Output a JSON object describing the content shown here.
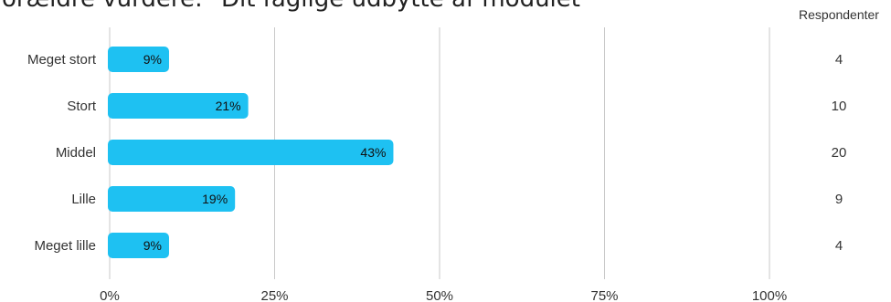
{
  "chart_data": {
    "type": "bar",
    "orientation": "horizontal",
    "title": "Forældre vurdere: \"Dit faglige udbytte af modulet\"",
    "categories": [
      "Meget stort",
      "Stort",
      "Middel",
      "Lille",
      "Meget lille"
    ],
    "values": [
      9,
      21,
      43,
      19,
      9
    ],
    "value_labels": [
      "9%",
      "21%",
      "43%",
      "19%",
      "9%"
    ],
    "respondents_header": "Respondenter",
    "respondents": [
      "4",
      "10",
      "20",
      "9",
      "4"
    ],
    "x_ticks": [
      "0%",
      "25%",
      "50%",
      "75%",
      "100%"
    ],
    "xlim": [
      0,
      100
    ],
    "grid": true,
    "bar_color": "#1ec1f2",
    "grid_color": "#c8c8c8"
  }
}
